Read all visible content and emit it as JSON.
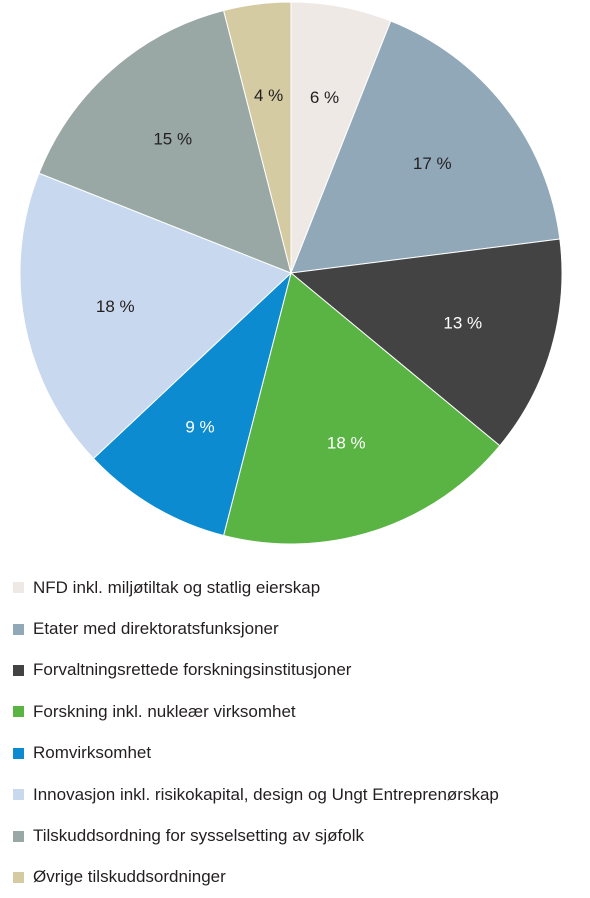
{
  "chart_data": {
    "type": "pie",
    "start_angle_deg": 0,
    "direction": "clockwise",
    "slices": [
      {
        "label": "NFD inkl. miljøtiltak og statlig eierskap",
        "value": 6,
        "value_label": "6 %",
        "color": "#efe9e6",
        "text_color": "#231f20"
      },
      {
        "label": "Etater med direktoratsfunksjoner",
        "value": 17,
        "value_label": "17 %",
        "color": "#90a8b8",
        "text_color": "#231f20"
      },
      {
        "label": "Forvaltningsrettede forskningsinstitusjoner",
        "value": 13,
        "value_label": "13 %",
        "color": "#434343",
        "text_color": "#ffffff"
      },
      {
        "label": "Forskning inkl. nukleær virksomhet",
        "value": 18,
        "value_label": "18 %",
        "color": "#5ab443",
        "text_color": "#ffffff"
      },
      {
        "label": "Romvirksomhet",
        "value": 9,
        "value_label": "9 %",
        "color": "#0d8bd0",
        "text_color": "#ffffff"
      },
      {
        "label": "Innovasjon inkl. risikokapital, design og Ungt Entreprenørskap",
        "value": 18,
        "value_label": "18 %",
        "color": "#c8d8ee",
        "text_color": "#231f20"
      },
      {
        "label": "Tilskuddsordning for sysselsetting av sjøfolk",
        "value": 15,
        "value_label": "15 %",
        "color": "#99a8a4",
        "text_color": "#231f20"
      },
      {
        "label": "Øvrige tilskuddsordninger",
        "value": 4,
        "value_label": "4 %",
        "color": "#d5cba2",
        "text_color": "#231f20"
      }
    ]
  }
}
